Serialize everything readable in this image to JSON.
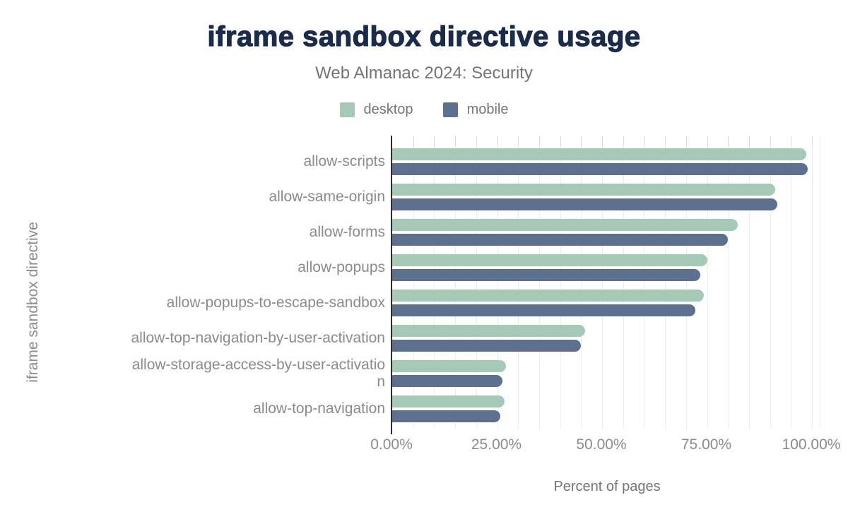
{
  "chart_data": {
    "type": "bar",
    "orientation": "horizontal",
    "title": "iframe sandbox directive usage",
    "subtitle": "Web Almanac 2024: Security",
    "xlabel": "Percent of pages",
    "ylabel": "iframe sandbox directive",
    "xlim": [
      0,
      100
    ],
    "xticks": [
      "0.00%",
      "25.00%",
      "50.00%",
      "75.00%",
      "100.00%"
    ],
    "xtick_values": [
      0,
      25,
      50,
      75,
      100
    ],
    "minor_grid_step_pct": 5,
    "grid": true,
    "legend_position": "top",
    "categories": [
      "allow-scripts",
      "allow-same-origin",
      "allow-forms",
      "allow-popups",
      "allow-popups-to-escape-sandbox",
      "allow-top-navigation-by-user-activation",
      "allow-storage-access-by-user-activation",
      "allow-top-navigation"
    ],
    "category_display_overrides": {
      "allow-storage-access-by-user-activation": "allow-storage-access-by-user-activatio\nn"
    },
    "series": [
      {
        "name": "desktop",
        "color": "#a5c9b6",
        "values": [
          98.6,
          91.3,
          82.3,
          75.0,
          74.2,
          46.0,
          27.1,
          26.7
        ]
      },
      {
        "name": "mobile",
        "color": "#5e708f",
        "values": [
          99.0,
          91.7,
          79.9,
          73.4,
          72.2,
          45.0,
          26.2,
          25.8
        ]
      }
    ]
  },
  "colors": {
    "title": "#1b2b4a",
    "subtitle": "#757575",
    "axis_title": "#757575",
    "tick_label": "#8b8b8b",
    "category_label": "#8b8b8b",
    "axis_line": "#2e2e2e",
    "gridline": "#ececec",
    "grid_tick": "#d8d8d8",
    "background": "#ffffff"
  }
}
